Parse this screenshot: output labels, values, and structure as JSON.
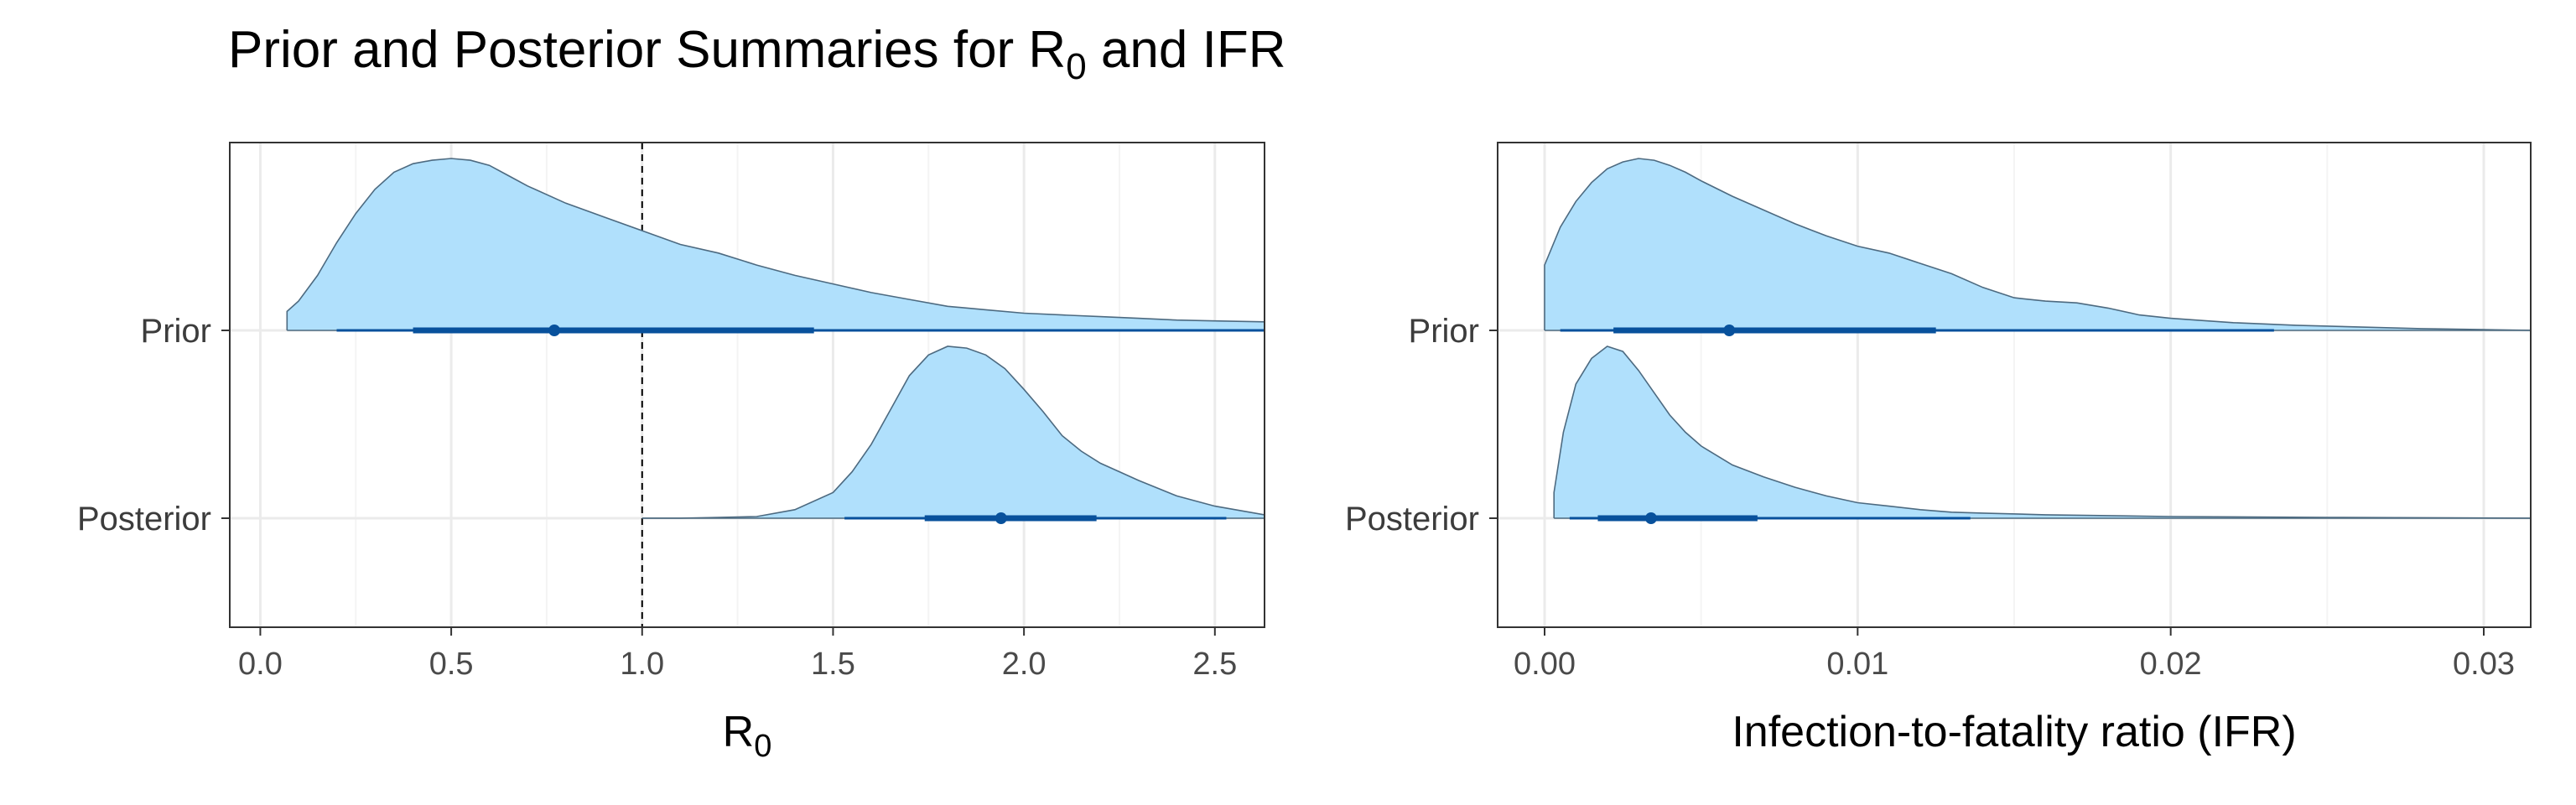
{
  "title": {
    "prefix": "Prior and Posterior Summaries for R",
    "subscript": "0",
    "suffix": " and IFR"
  },
  "colors": {
    "density_fill": "#b0e0fc",
    "density_line": "#4d6a80",
    "interval": "#08519c",
    "grid_major": "#ebebeb",
    "grid_minor": "#f4f4f4",
    "panel_border": "#333333",
    "text": "#3c3c3c"
  },
  "chart_data": [
    {
      "type": "area",
      "subtype": "halfeye",
      "xlabel": {
        "main": "R",
        "subscript": "0"
      },
      "xlim": [
        -0.08,
        2.63
      ],
      "xticks": [
        0.0,
        0.5,
        1.0,
        1.5,
        2.0,
        2.5
      ],
      "tick_labels": [
        "0.0",
        "0.5",
        "1.0",
        "1.5",
        "2.0",
        "2.5"
      ],
      "reference_line": {
        "x": 1.0,
        "style": "dashed"
      },
      "categories": [
        "Prior",
        "Posterior"
      ],
      "series": [
        {
          "name": "Prior",
          "density": {
            "x": [
              0.07,
              0.1,
              0.15,
              0.2,
              0.25,
              0.3,
              0.35,
              0.4,
              0.45,
              0.5,
              0.55,
              0.6,
              0.65,
              0.7,
              0.8,
              0.9,
              1.0,
              1.1,
              1.2,
              1.3,
              1.4,
              1.5,
              1.6,
              1.7,
              1.8,
              1.9,
              2.0,
              2.1,
              2.2,
              2.3,
              2.4,
              2.5,
              2.63
            ],
            "y": [
              0.11,
              0.17,
              0.32,
              0.51,
              0.68,
              0.82,
              0.92,
              0.97,
              0.99,
              1.0,
              0.99,
              0.96,
              0.9,
              0.84,
              0.74,
              0.66,
              0.58,
              0.5,
              0.45,
              0.38,
              0.32,
              0.27,
              0.22,
              0.18,
              0.14,
              0.12,
              0.1,
              0.09,
              0.08,
              0.07,
              0.06,
              0.055,
              0.05
            ]
          },
          "point": 0.77,
          "interval_inner": [
            0.4,
            1.45
          ],
          "interval_outer": [
            0.2,
            2.63
          ]
        },
        {
          "name": "Posterior",
          "density": {
            "x": [
              1.0,
              1.1,
              1.2,
              1.3,
              1.4,
              1.5,
              1.55,
              1.6,
              1.65,
              1.7,
              1.75,
              1.8,
              1.85,
              1.9,
              1.95,
              2.0,
              2.05,
              2.1,
              2.15,
              2.2,
              2.25,
              2.3,
              2.4,
              2.5,
              2.63
            ],
            "y": [
              0.0,
              0.0,
              0.005,
              0.01,
              0.05,
              0.15,
              0.27,
              0.43,
              0.63,
              0.83,
              0.95,
              1.0,
              0.99,
              0.95,
              0.87,
              0.75,
              0.62,
              0.48,
              0.39,
              0.32,
              0.27,
              0.22,
              0.13,
              0.07,
              0.02
            ]
          },
          "point": 1.94,
          "interval_inner": [
            1.74,
            2.19
          ],
          "interval_outer": [
            1.53,
            2.53
          ]
        }
      ]
    },
    {
      "type": "area",
      "subtype": "halfeye",
      "xlabel": {
        "main": "Infection-to-fatality ratio (IFR)"
      },
      "xlim": [
        -0.0015,
        0.0315
      ],
      "xticks": [
        0.0,
        0.01,
        0.02,
        0.03
      ],
      "tick_labels": [
        "0.00",
        "0.01",
        "0.02",
        "0.03"
      ],
      "categories": [
        "Prior",
        "Posterior"
      ],
      "series": [
        {
          "name": "Prior",
          "density": {
            "x": [
              0.0,
              0.0005,
              0.001,
              0.0015,
              0.002,
              0.0025,
              0.003,
              0.0035,
              0.004,
              0.0045,
              0.005,
              0.006,
              0.007,
              0.008,
              0.009,
              0.01,
              0.011,
              0.012,
              0.013,
              0.014,
              0.015,
              0.016,
              0.017,
              0.018,
              0.019,
              0.02,
              0.022,
              0.024,
              0.026,
              0.028,
              0.03,
              0.0315
            ],
            "y": [
              0.38,
              0.6,
              0.75,
              0.86,
              0.94,
              0.98,
              1.0,
              0.99,
              0.96,
              0.92,
              0.87,
              0.78,
              0.7,
              0.62,
              0.55,
              0.49,
              0.45,
              0.39,
              0.33,
              0.25,
              0.19,
              0.17,
              0.16,
              0.13,
              0.09,
              0.07,
              0.045,
              0.03,
              0.02,
              0.01,
              0.005,
              0.0
            ]
          },
          "point": 0.0059,
          "interval_inner": [
            0.0022,
            0.0125
          ],
          "interval_outer": [
            0.0005,
            0.0233
          ]
        },
        {
          "name": "Posterior",
          "density": {
            "x": [
              0.0003,
              0.0006,
              0.001,
              0.0015,
              0.002,
              0.0025,
              0.003,
              0.0035,
              0.004,
              0.0045,
              0.005,
              0.006,
              0.007,
              0.008,
              0.009,
              0.01,
              0.011,
              0.012,
              0.013,
              0.014,
              0.016,
              0.018,
              0.02,
              0.025,
              0.0315
            ],
            "y": [
              0.15,
              0.5,
              0.78,
              0.93,
              1.0,
              0.97,
              0.86,
              0.73,
              0.6,
              0.5,
              0.42,
              0.31,
              0.24,
              0.18,
              0.13,
              0.09,
              0.07,
              0.05,
              0.035,
              0.03,
              0.02,
              0.015,
              0.01,
              0.005,
              0.0
            ]
          },
          "point": 0.0034,
          "interval_inner": [
            0.0017,
            0.0068
          ],
          "interval_outer": [
            0.0008,
            0.0136
          ]
        }
      ]
    }
  ]
}
